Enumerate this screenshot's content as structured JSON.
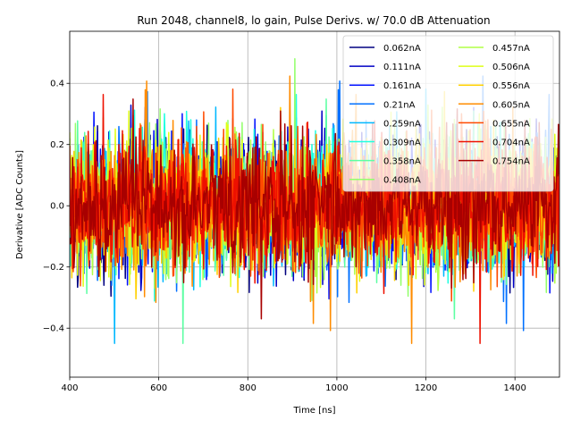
{
  "chart_data": {
    "type": "line",
    "title": "Run 2048, channel8, lo gain, Pulse Derivs. w/ 70.0 dB Attenuation",
    "xlabel": "Time [ns]",
    "ylabel": "Derivative [ADC Counts]",
    "xlim": [
      400,
      1500
    ],
    "ylim": [
      -0.56,
      0.57
    ],
    "xticks": [
      400,
      600,
      800,
      1000,
      1200,
      1400
    ],
    "yticks": [
      -0.4,
      -0.2,
      0.0,
      0.2,
      0.4
    ],
    "xtick_labels": [
      "400",
      "600",
      "800",
      "1000",
      "1200",
      "1400"
    ],
    "ytick_labels": [
      "−0.4",
      "−0.2",
      "0.0",
      "0.2",
      "0.4"
    ],
    "grid": true,
    "legend_position": "top-right",
    "legend_columns": 2,
    "noise_amplitude": 0.1,
    "series": [
      {
        "name": "0.062nA",
        "color": "#000080"
      },
      {
        "name": "0.111nA",
        "color": "#0000c4"
      },
      {
        "name": "0.161nA",
        "color": "#0010ff"
      },
      {
        "name": "0.21nA",
        "color": "#0070ff"
      },
      {
        "name": "0.259nA",
        "color": "#00b8ff"
      },
      {
        "name": "0.309nA",
        "color": "#1fffe0"
      },
      {
        "name": "0.358nA",
        "color": "#5cffa3"
      },
      {
        "name": "0.408nA",
        "color": "#93ff6c"
      },
      {
        "name": "0.457nA",
        "color": "#b0ff47"
      },
      {
        "name": "0.506nA",
        "color": "#dfff18"
      },
      {
        "name": "0.556nA",
        "color": "#ffd000"
      },
      {
        "name": "0.605nA",
        "color": "#ff8c00"
      },
      {
        "name": "0.655nA",
        "color": "#ff4a00"
      },
      {
        "name": "0.704nA",
        "color": "#ee1000"
      },
      {
        "name": "0.754nA",
        "color": "#a80000"
      }
    ]
  }
}
